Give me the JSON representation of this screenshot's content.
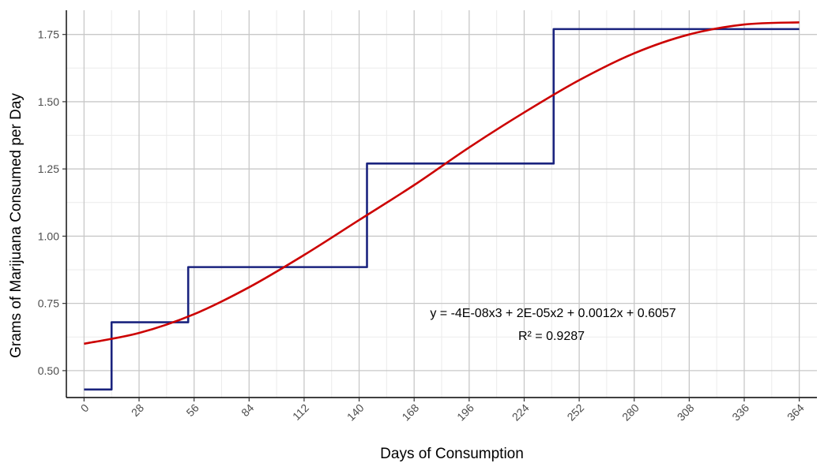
{
  "chart_data": {
    "type": "line",
    "xlabel": "Days of Consumption",
    "ylabel": "Grams of Marijuana Consumed per Day",
    "xlim": [
      -9,
      373
    ],
    "ylim": [
      0.4,
      1.84
    ],
    "x_ticks": [
      0,
      28,
      56,
      84,
      112,
      140,
      168,
      196,
      224,
      252,
      280,
      308,
      336,
      364
    ],
    "x_minor_ticks": [
      14,
      42,
      70,
      98,
      126,
      154,
      182,
      210,
      238,
      266,
      294,
      322,
      350
    ],
    "y_ticks": [
      0.5,
      0.75,
      1.0,
      1.25,
      1.5,
      1.75
    ],
    "y_tick_labels": [
      "0.50",
      "0.75",
      "1.00",
      "1.25",
      "1.50",
      "1.75"
    ],
    "y_minor_ticks": [
      0.625,
      0.875,
      1.125,
      1.375,
      1.625
    ],
    "grid": true,
    "series": [
      {
        "color": "#1a237e",
        "x": [
          0,
          14,
          14,
          53,
          53,
          144,
          144,
          239,
          239,
          364
        ],
        "y": [
          0.43,
          0.43,
          0.68,
          0.68,
          0.885,
          0.885,
          1.27,
          1.27,
          1.77,
          1.77
        ]
      },
      {
        "color": "#cc0000",
        "x": [
          0,
          28,
          56,
          84,
          112,
          140,
          168,
          196,
          224,
          252,
          280,
          308,
          336,
          364
        ],
        "y": [
          0.6,
          0.64,
          0.71,
          0.81,
          0.93,
          1.06,
          1.19,
          1.33,
          1.46,
          1.58,
          1.68,
          1.75,
          1.787,
          1.795
        ]
      }
    ],
    "annotations": [
      "y = -4E-08x3 + 2E-05x2 + 0.0012x + 0.6057",
      "R² = 0.9287"
    ]
  }
}
